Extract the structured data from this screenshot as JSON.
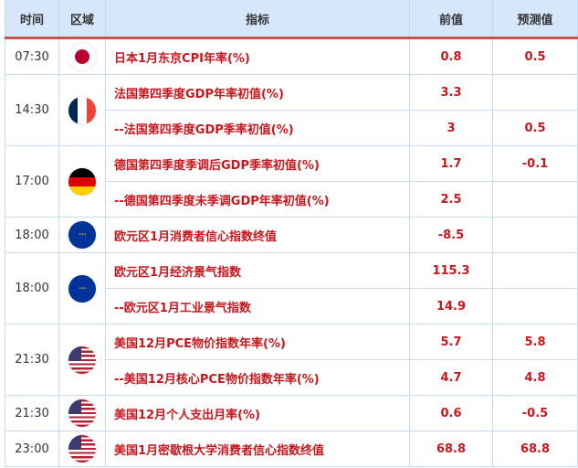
{
  "headers": {
    "time": "时间",
    "region": "区域",
    "indicator": "指标",
    "previous": "前值",
    "forecast": "预测值"
  },
  "groups": [
    {
      "time": "07:30",
      "flag": "japan-flag",
      "rows": [
        {
          "name": "日本1月东京CPI年率(%)",
          "prev": "0.8",
          "fc": "0.5"
        }
      ]
    },
    {
      "time": "14:30",
      "flag": "france-flag",
      "rows": [
        {
          "name": "法国第四季度GDP年率初值(%)",
          "prev": "3.3",
          "fc": ""
        },
        {
          "name": "--法国第四季度GDP季率初值(%)",
          "prev": "3",
          "fc": "0.5"
        }
      ]
    },
    {
      "time": "17:00",
      "flag": "germany-flag",
      "rows": [
        {
          "name": "德国第四季度季调后GDP季率初值(%)",
          "prev": "1.7",
          "fc": "-0.1"
        },
        {
          "name": "--德国第四季度未季调GDP年率初值(%)",
          "prev": "2.5",
          "fc": ""
        }
      ]
    },
    {
      "time": "18:00",
      "flag": "eu-flag",
      "rows": [
        {
          "name": "欧元区1月消费者信心指数终值",
          "prev": "-8.5",
          "fc": ""
        }
      ]
    },
    {
      "time": "18:00",
      "flag": "eu-flag",
      "rows": [
        {
          "name": "欧元区1月经济景气指数",
          "prev": "115.3",
          "fc": ""
        },
        {
          "name": "--欧元区1月工业景气指数",
          "prev": "14.9",
          "fc": ""
        }
      ]
    },
    {
      "time": "21:30",
      "flag": "us-flag",
      "rows": [
        {
          "name": "美国12月PCE物价指数年率(%)",
          "prev": "5.7",
          "fc": "5.8"
        },
        {
          "name": "--美国12月核心PCE物价指数年率(%)",
          "prev": "4.7",
          "fc": "4.8"
        }
      ]
    },
    {
      "time": "21:30",
      "flag": "us-flag",
      "rows": [
        {
          "name": "美国12月个人支出月率(%)",
          "prev": "0.6",
          "fc": "-0.5"
        }
      ]
    },
    {
      "time": "23:00",
      "flag": "us-flag",
      "rows": [
        {
          "name": "美国1月密歇根大学消费者信心指数终值",
          "prev": "68.8",
          "fc": "68.8"
        }
      ]
    }
  ]
}
